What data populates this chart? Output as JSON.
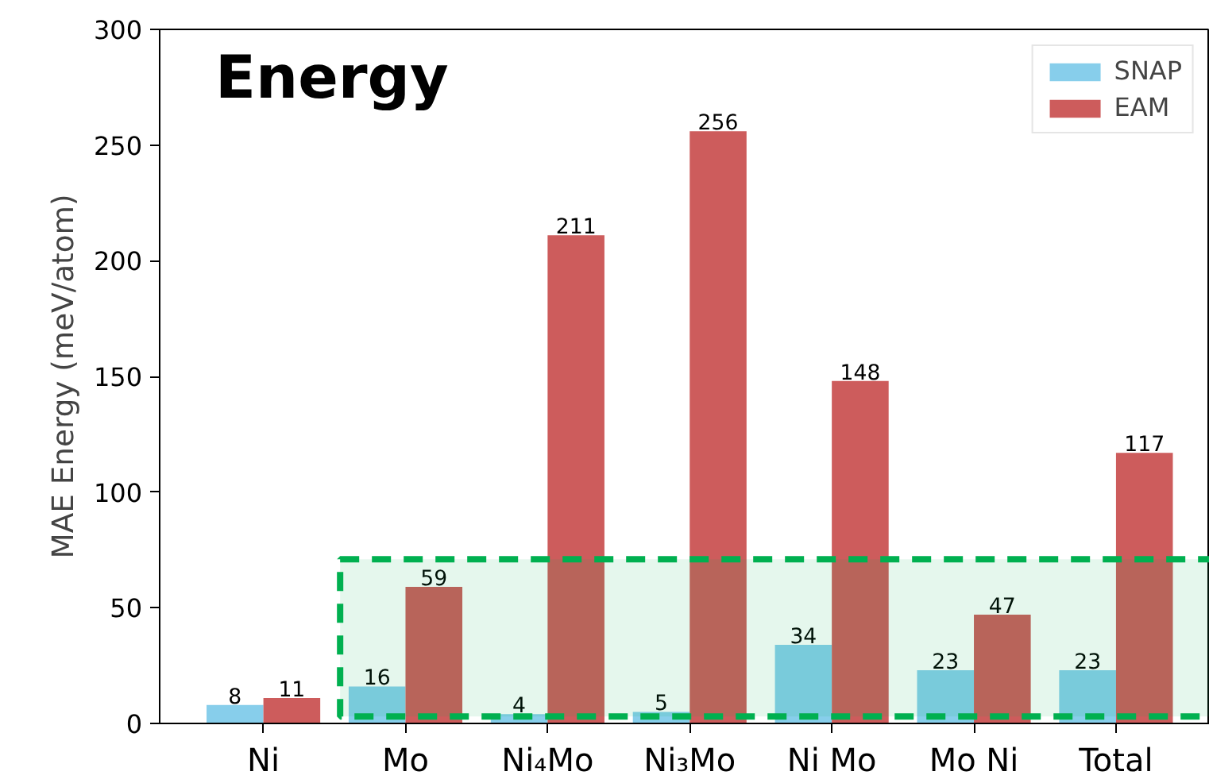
{
  "chart_data": {
    "type": "bar",
    "title": "Energy",
    "ylabel": "MAE Energy (meV/atom)",
    "categories": [
      "Ni",
      "Mo",
      "Ni₄Mo",
      "Ni₃Mo",
      "Ni Mo",
      "Mo Ni",
      "Total"
    ],
    "series": [
      {
        "name": "SNAP",
        "color": "#87ceeb",
        "values": [
          8,
          16,
          4,
          5,
          34,
          23,
          23
        ]
      },
      {
        "name": "EAM",
        "color": "#cd5c5c",
        "values": [
          11,
          59,
          211,
          256,
          148,
          47,
          117
        ]
      }
    ],
    "ylim": [
      0,
      300
    ],
    "yticks": [
      0,
      50,
      100,
      150,
      200,
      250,
      300
    ],
    "bands": [
      {
        "axis": "y",
        "from": 3,
        "to": 71,
        "color": "#00b050"
      }
    ],
    "data_labels": true,
    "legend": "top right",
    "grid": false
  }
}
